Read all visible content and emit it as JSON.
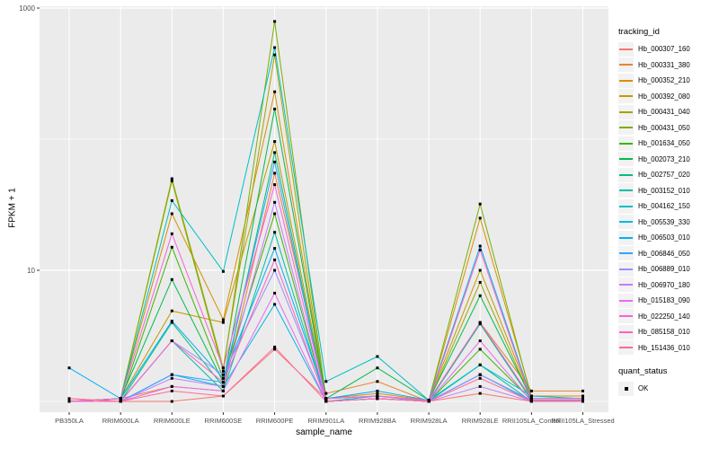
{
  "figure": {
    "background": "#FFFFFF",
    "panel_background": "#EBEBEB",
    "gridline_color": "#FFFFFF",
    "axis_text_color": "#4D4D4D",
    "tick_color": "#333333",
    "point_color": "#000000"
  },
  "chart_data": {
    "type": "line",
    "title": "",
    "xlabel": "sample_name",
    "ylabel": "FPKM + 1",
    "y_scale": "log10",
    "ylim": [
      0.83,
      1050
    ],
    "grid": true,
    "legend_position": "right",
    "y_axis_ticks": [
      {
        "label": "10",
        "value": 10
      },
      {
        "label": "1000",
        "value": 1000
      }
    ],
    "y_minor_gridlines": [
      1,
      100
    ],
    "categories": [
      "PB350LA",
      "RRIM600LA",
      "RRIM600LE",
      "RRIM600SE",
      "RRIM600PE",
      "RRIM901LA",
      "RRIM928BA",
      "RRIM928LA",
      "RRIM928LE",
      "RRII105LA_Control",
      "RRII105LA_Stressed"
    ],
    "series": [
      {
        "name": "Hb_000307_160",
        "color": "#F8766D",
        "values": [
          1.05,
          1.0,
          1.0,
          1.1,
          2.5,
          1.05,
          1.1,
          1.0,
          1.15,
          1.0,
          1.0
        ]
      },
      {
        "name": "Hb_000331_380",
        "color": "#EA8331",
        "values": [
          1.0,
          1.05,
          1.3,
          1.2,
          55,
          1.15,
          1.42,
          1.0,
          4.0,
          1.2,
          1.2
        ]
      },
      {
        "name": "Hb_000352_210",
        "color": "#D89000",
        "values": [
          1.0,
          1.05,
          27,
          4.2,
          230,
          1.05,
          1.15,
          1.02,
          25,
          1.1,
          1.1
        ]
      },
      {
        "name": "Hb_000392_080",
        "color": "#C09B00",
        "values": [
          1.0,
          1.05,
          4.9,
          4.0,
          96,
          1.05,
          1.1,
          1.02,
          10,
          1.05,
          1.05
        ]
      },
      {
        "name": "Hb_000431_040",
        "color": "#A3A500",
        "values": [
          1.0,
          1.05,
          50,
          1.8,
          440,
          1.0,
          1.05,
          1.0,
          8.1,
          1.02,
          1.02
        ]
      },
      {
        "name": "Hb_000431_050",
        "color": "#7CAE00",
        "values": [
          1.0,
          1.05,
          48,
          1.7,
          790,
          1.05,
          1.1,
          1.02,
          32,
          1.05,
          1.05
        ]
      },
      {
        "name": "Hb_001634_050",
        "color": "#39B600",
        "values": [
          1.0,
          1.0,
          15,
          1.5,
          27,
          1.0,
          1.05,
          1.0,
          2.5,
          1.02,
          1.02
        ]
      },
      {
        "name": "Hb_002073_210",
        "color": "#00BB4E",
        "values": [
          1.0,
          1.05,
          8.5,
          1.4,
          170,
          1.05,
          1.8,
          1.02,
          6.4,
          1.05,
          1.05
        ]
      },
      {
        "name": "Hb_002757_020",
        "color": "#00BF7D",
        "values": [
          1.0,
          1.0,
          4.0,
          1.3,
          79,
          1.0,
          1.05,
          1.0,
          3.9,
          1.02,
          1.02
        ]
      },
      {
        "name": "Hb_003152_010",
        "color": "#00C1A3",
        "values": [
          1.0,
          1.0,
          2.9,
          1.2,
          19.5,
          1.0,
          1.05,
          1.0,
          1.9,
          1.0,
          1.0
        ]
      },
      {
        "name": "Hb_004162_150",
        "color": "#00BFC4",
        "values": [
          1.0,
          1.05,
          34,
          9.8,
          500,
          1.42,
          2.2,
          1.02,
          1.9,
          1.1,
          1.05
        ]
      },
      {
        "name": "Hb_005539_330",
        "color": "#00BAE0",
        "values": [
          1.0,
          1.0,
          1.6,
          1.3,
          5.5,
          1.0,
          1.1,
          1.0,
          1.6,
          1.0,
          1.0
        ]
      },
      {
        "name": "Hb_006503_010",
        "color": "#00B0F6",
        "values": [
          1.8,
          1.05,
          4.1,
          1.5,
          14.7,
          1.05,
          1.2,
          1.02,
          15.3,
          1.05,
          1.05
        ]
      },
      {
        "name": "Hb_006846_050",
        "color": "#35A2FF",
        "values": [
          1.0,
          1.0,
          1.6,
          1.4,
          67,
          1.0,
          1.05,
          1.0,
          1.6,
          1.02,
          1.02
        ]
      },
      {
        "name": "Hb_006889_010",
        "color": "#9590FF",
        "values": [
          1.0,
          1.0,
          2.9,
          1.6,
          10,
          1.05,
          1.1,
          1.0,
          1.6,
          1.02,
          1.02
        ]
      },
      {
        "name": "Hb_006970_180",
        "color": "#C77CFF",
        "values": [
          1.0,
          1.0,
          1.5,
          1.3,
          33,
          1.0,
          1.05,
          1.0,
          1.3,
          1.0,
          1.0
        ]
      },
      {
        "name": "Hb_015183_090",
        "color": "#E76BF3",
        "values": [
          1.0,
          1.0,
          1.3,
          1.2,
          6.7,
          1.0,
          1.05,
          1.0,
          2.9,
          1.0,
          1.0
        ]
      },
      {
        "name": "Hb_022250_140",
        "color": "#FA62DB",
        "values": [
          1.0,
          1.05,
          19,
          1.8,
          45,
          1.05,
          1.1,
          1.02,
          4.0,
          1.05,
          1.05
        ]
      },
      {
        "name": "Hb_085158_010",
        "color": "#FF62BC",
        "values": [
          1.0,
          1.0,
          2.9,
          1.4,
          12,
          1.0,
          1.05,
          1.0,
          14.3,
          1.02,
          1.02
        ]
      },
      {
        "name": "Hb_151436_010",
        "color": "#FF6A98",
        "values": [
          1.05,
          1.0,
          1.2,
          1.1,
          2.6,
          1.0,
          1.05,
          1.0,
          1.5,
          1.0,
          1.0
        ]
      }
    ],
    "legend": {
      "tracking_title": "tracking_id",
      "quant_title": "quant_status",
      "quant_items": [
        {
          "label": "OK",
          "marker": "black-square"
        }
      ]
    }
  }
}
